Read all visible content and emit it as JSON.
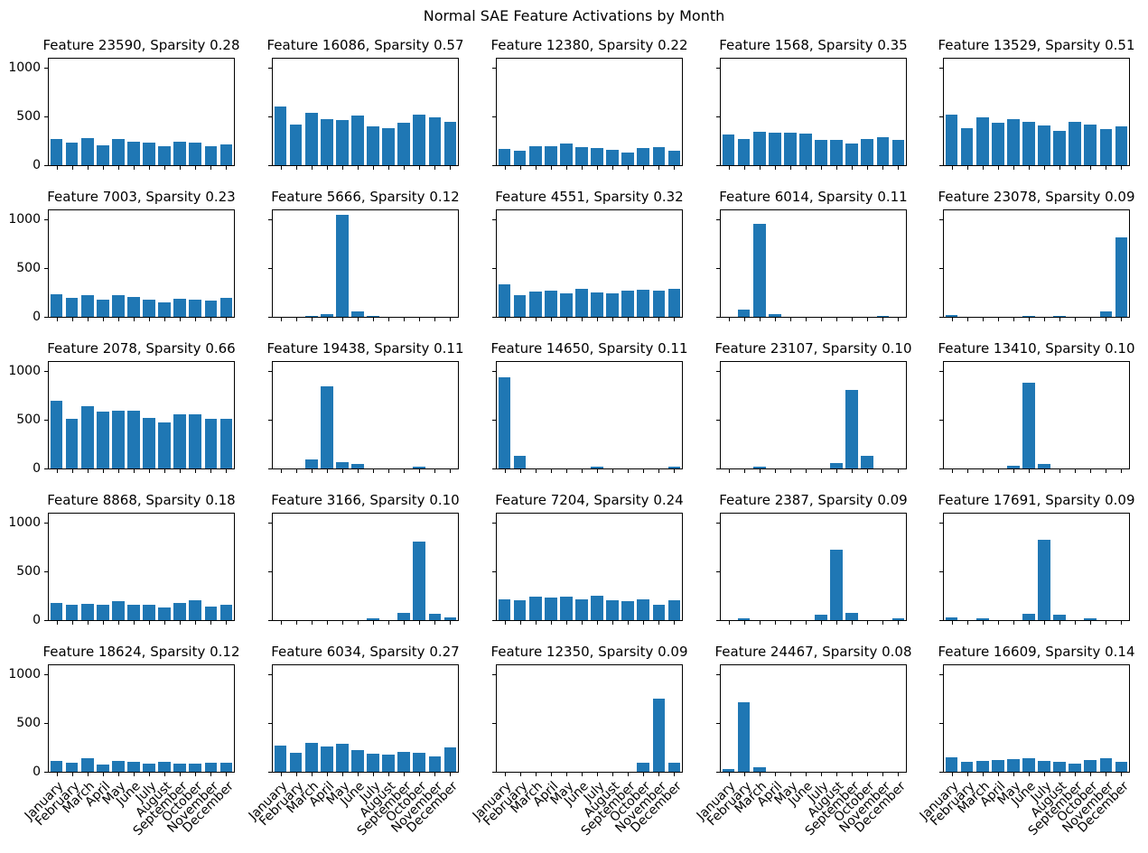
{
  "figure": {
    "suptitle": "Normal SAE Feature Activations by Month"
  },
  "chart_data": {
    "type": "bar",
    "layout": "5x5-grid",
    "suptitle": "Normal SAE Feature Activations by Month",
    "bar_color": "#1f77b4",
    "ylim": [
      0,
      1090
    ],
    "yticks": [
      "0",
      "500",
      "1000"
    ],
    "ytick_values": [
      0,
      500,
      1000
    ],
    "grid": "off",
    "x_tick_label_rotation": 45,
    "categories": [
      "January",
      "February",
      "March",
      "April",
      "May",
      "June",
      "July",
      "August",
      "September",
      "October",
      "November",
      "December"
    ],
    "subplots": [
      {
        "title": "Feature 23590, Sparsity 0.28",
        "feature": 23590,
        "sparsity": 0.28,
        "values": [
          270,
          230,
          280,
          200,
          265,
          240,
          235,
          190,
          240,
          235,
          195,
          215
        ]
      },
      {
        "title": "Feature 16086, Sparsity 0.57",
        "feature": 16086,
        "sparsity": 0.57,
        "values": [
          600,
          420,
          535,
          470,
          460,
          505,
          400,
          375,
          430,
          515,
          490,
          445
        ]
      },
      {
        "title": "Feature 12380, Sparsity 0.22",
        "feature": 12380,
        "sparsity": 0.22,
        "values": [
          165,
          150,
          195,
          195,
          220,
          185,
          180,
          155,
          130,
          175,
          185,
          150
        ]
      },
      {
        "title": "Feature 1568, Sparsity 0.35",
        "feature": 1568,
        "sparsity": 0.35,
        "values": [
          310,
          265,
          345,
          330,
          335,
          325,
          255,
          255,
          225,
          265,
          290,
          255
        ]
      },
      {
        "title": "Feature 13529, Sparsity 0.51",
        "feature": 13529,
        "sparsity": 0.51,
        "values": [
          520,
          380,
          490,
          435,
          470,
          440,
          405,
          350,
          440,
          415,
          370,
          400
        ]
      },
      {
        "title": "Feature 7003, Sparsity 0.23",
        "feature": 7003,
        "sparsity": 0.23,
        "values": [
          230,
          195,
          225,
          175,
          220,
          200,
          180,
          150,
          185,
          180,
          170,
          195
        ]
      },
      {
        "title": "Feature 5666, Sparsity 0.12",
        "feature": 5666,
        "sparsity": 0.12,
        "values": [
          0,
          0,
          10,
          25,
          1040,
          60,
          10,
          0,
          0,
          0,
          0,
          0
        ]
      },
      {
        "title": "Feature 4551, Sparsity 0.32",
        "feature": 4551,
        "sparsity": 0.32,
        "values": [
          330,
          220,
          255,
          265,
          240,
          285,
          245,
          240,
          265,
          275,
          265,
          285
        ]
      },
      {
        "title": "Feature 6014, Sparsity 0.11",
        "feature": 6014,
        "sparsity": 0.11,
        "values": [
          0,
          75,
          950,
          30,
          0,
          0,
          0,
          0,
          0,
          0,
          10,
          0
        ]
      },
      {
        "title": "Feature 23078, Sparsity 0.09",
        "feature": 23078,
        "sparsity": 0.09,
        "values": [
          20,
          0,
          0,
          0,
          0,
          10,
          0,
          10,
          0,
          0,
          60,
          810
        ]
      },
      {
        "title": "Feature 2078, Sparsity 0.66",
        "feature": 2078,
        "sparsity": 0.66,
        "values": [
          690,
          510,
          640,
          585,
          590,
          590,
          520,
          470,
          550,
          550,
          510,
          510
        ]
      },
      {
        "title": "Feature 19438, Sparsity 0.11",
        "feature": 19438,
        "sparsity": 0.11,
        "values": [
          0,
          0,
          95,
          840,
          65,
          45,
          0,
          0,
          0,
          20,
          0,
          0
        ]
      },
      {
        "title": "Feature 14650, Sparsity 0.11",
        "feature": 14650,
        "sparsity": 0.11,
        "values": [
          930,
          125,
          0,
          0,
          0,
          0,
          15,
          0,
          0,
          0,
          0,
          20
        ]
      },
      {
        "title": "Feature 23107, Sparsity 0.10",
        "feature": 23107,
        "sparsity": 0.1,
        "values": [
          0,
          0,
          20,
          0,
          0,
          0,
          0,
          55,
          800,
          125,
          0,
          0
        ]
      },
      {
        "title": "Feature 13410, Sparsity 0.10",
        "feature": 13410,
        "sparsity": 0.1,
        "values": [
          0,
          0,
          0,
          0,
          30,
          875,
          45,
          0,
          0,
          0,
          0,
          0
        ]
      },
      {
        "title": "Feature 8868, Sparsity 0.18",
        "feature": 8868,
        "sparsity": 0.18,
        "values": [
          180,
          155,
          170,
          160,
          190,
          155,
          155,
          130,
          175,
          205,
          140,
          160
        ]
      },
      {
        "title": "Feature 3166, Sparsity 0.10",
        "feature": 3166,
        "sparsity": 0.1,
        "values": [
          0,
          0,
          0,
          0,
          0,
          0,
          15,
          0,
          75,
          800,
          65,
          30
        ]
      },
      {
        "title": "Feature 7204, Sparsity 0.24",
        "feature": 7204,
        "sparsity": 0.24,
        "values": [
          210,
          200,
          240,
          230,
          240,
          215,
          250,
          205,
          190,
          215,
          155,
          200
        ]
      },
      {
        "title": "Feature 2387, Sparsity 0.09",
        "feature": 2387,
        "sparsity": 0.09,
        "values": [
          0,
          20,
          0,
          0,
          0,
          0,
          60,
          720,
          70,
          0,
          0,
          15
        ]
      },
      {
        "title": "Feature 17691, Sparsity 0.09",
        "feature": 17691,
        "sparsity": 0.09,
        "values": [
          25,
          0,
          15,
          0,
          0,
          65,
          820,
          55,
          0,
          15,
          0,
          0
        ]
      },
      {
        "title": "Feature 18624, Sparsity 0.12",
        "feature": 18624,
        "sparsity": 0.12,
        "values": [
          110,
          95,
          135,
          75,
          115,
          100,
          85,
          105,
          85,
          85,
          90,
          90
        ]
      },
      {
        "title": "Feature 6034, Sparsity 0.27",
        "feature": 6034,
        "sparsity": 0.27,
        "values": [
          265,
          190,
          300,
          255,
          290,
          220,
          185,
          175,
          205,
          195,
          155,
          245
        ]
      },
      {
        "title": "Feature 12350, Sparsity 0.09",
        "feature": 12350,
        "sparsity": 0.09,
        "values": [
          0,
          0,
          0,
          0,
          0,
          0,
          0,
          0,
          0,
          95,
          745,
          95
        ]
      },
      {
        "title": "Feature 24467, Sparsity 0.08",
        "feature": 24467,
        "sparsity": 0.08,
        "values": [
          30,
          710,
          45,
          0,
          0,
          0,
          0,
          0,
          0,
          0,
          0,
          0
        ]
      },
      {
        "title": "Feature 16609, Sparsity 0.14",
        "feature": 16609,
        "sparsity": 0.14,
        "values": [
          145,
          105,
          110,
          120,
          130,
          140,
          115,
          105,
          80,
          120,
          135,
          105
        ]
      }
    ]
  }
}
